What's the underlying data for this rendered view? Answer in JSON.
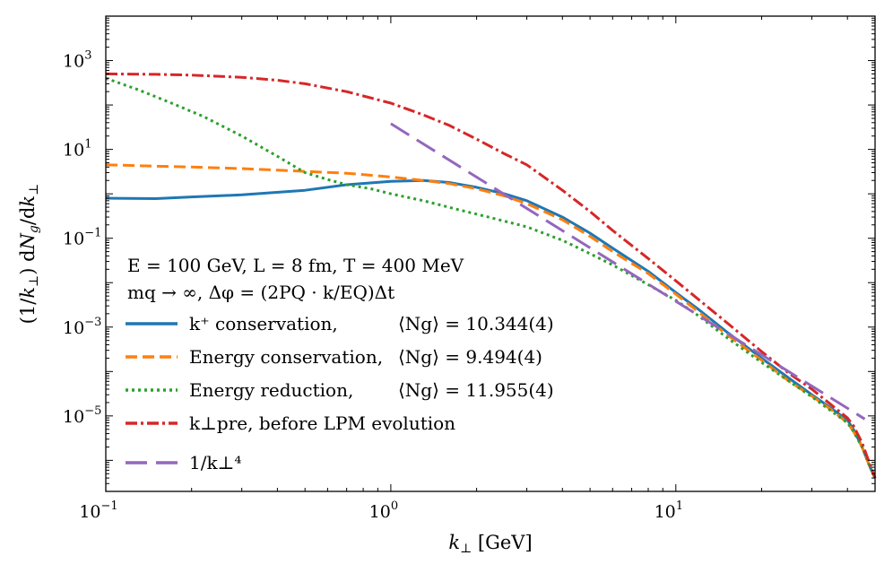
{
  "chart_data": {
    "type": "line",
    "xscale": "log",
    "yscale": "log",
    "xlim": [
      0.1,
      50
    ],
    "ylim": [
      2e-07,
      10000
    ],
    "xlabel": "(k⊥) [GeV]",
    "xlabel_text": "k⊥ [GeV]",
    "ylabel": "(1/k⊥) dNg/dk⊥",
    "x_ticks": [
      {
        "value": 0.1,
        "base": "10",
        "exp": "−1"
      },
      {
        "value": 1,
        "base": "10",
        "exp": "0"
      },
      {
        "value": 10,
        "base": "10",
        "exp": "1"
      }
    ],
    "y_ticks": [
      {
        "value": 1e-05,
        "base": "10",
        "exp": "−5"
      },
      {
        "value": 0.001,
        "base": "10",
        "exp": "−3"
      },
      {
        "value": 0.1,
        "base": "10",
        "exp": "−1"
      },
      {
        "value": 10,
        "base": "10",
        "exp": "1"
      },
      {
        "value": 1000,
        "base": "10",
        "exp": "3"
      }
    ],
    "annotations": [
      "E = 100 GeV,   L = 8 fm,   T = 400 MeV",
      "mq → ∞,   Δφ = (2PQ · k/EQ)Δt"
    ],
    "series": [
      {
        "name": "k⁺ conservation",
        "legend": "k⁺ conservation,",
        "avg": "⟨Ng⟩ = 10.344(4)",
        "color": "#1f77b4",
        "style": "solid",
        "x": [
          0.1,
          0.15,
          0.2,
          0.3,
          0.5,
          0.7,
          1.0,
          1.3,
          1.6,
          2.0,
          2.5,
          3.0,
          4.0,
          5.0,
          6.0,
          8.0,
          10,
          12,
          15,
          20,
          25,
          30,
          35,
          40,
          42,
          45,
          48,
          50
        ],
        "y": [
          0.8,
          0.78,
          0.85,
          0.95,
          1.2,
          1.6,
          1.9,
          2.0,
          1.8,
          1.4,
          1.0,
          0.7,
          0.3,
          0.13,
          0.06,
          0.018,
          0.006,
          0.0025,
          0.0008,
          0.0002,
          7e-05,
          3e-05,
          1.5e-05,
          8e-06,
          5e-06,
          2e-06,
          7e-07,
          4e-07
        ]
      },
      {
        "name": "Energy conservation",
        "legend": "Energy conservation,",
        "avg": "⟨Ng⟩ = 9.494(4)",
        "color": "#ff7f0e",
        "style": "dashed",
        "x": [
          0.1,
          0.15,
          0.2,
          0.3,
          0.5,
          0.7,
          1.0,
          1.3,
          1.6,
          2.0,
          2.5,
          3.0,
          4.0,
          5.0,
          6.0,
          8.0,
          10,
          12,
          15,
          20,
          25,
          30,
          35,
          40,
          42,
          45,
          48,
          50
        ],
        "y": [
          4.5,
          4.2,
          4.0,
          3.7,
          3.2,
          2.9,
          2.4,
          2.0,
          1.7,
          1.3,
          0.9,
          0.6,
          0.26,
          0.11,
          0.05,
          0.016,
          0.0055,
          0.0022,
          0.0007,
          0.00018,
          6e-05,
          2.8e-05,
          1.4e-05,
          7e-06,
          4.5e-06,
          2e-06,
          7e-07,
          4e-07
        ]
      },
      {
        "name": "Energy reduction",
        "legend": "Energy reduction,",
        "avg": "⟨Ng⟩ = 11.955(4)",
        "color": "#2ca02c",
        "style": "dotted",
        "x": [
          0.1,
          0.13,
          0.17,
          0.22,
          0.3,
          0.4,
          0.5,
          0.6,
          0.7,
          0.85,
          1.0,
          1.3,
          1.7,
          2.2,
          3.0,
          4.0,
          5.0,
          6.0,
          8.0,
          10,
          12,
          15,
          20,
          25,
          30,
          35,
          40,
          42,
          45,
          48,
          50
        ],
        "y": [
          400,
          220,
          110,
          55,
          20,
          7,
          3,
          2.1,
          1.6,
          1.3,
          1.0,
          0.7,
          0.45,
          0.3,
          0.18,
          0.09,
          0.045,
          0.025,
          0.009,
          0.004,
          0.0018,
          0.0006,
          0.00016,
          6e-05,
          2.7e-05,
          1.3e-05,
          7e-06,
          4.5e-06,
          2e-06,
          7e-07,
          4e-07
        ]
      },
      {
        "name": "k⊥pre, before LPM evolution",
        "legend": "k⊥pre, before LPM evolution",
        "avg": "",
        "color": "#d62728",
        "style": "dashdot",
        "x": [
          0.1,
          0.15,
          0.2,
          0.3,
          0.4,
          0.5,
          0.7,
          1.0,
          1.3,
          1.6,
          2.0,
          2.5,
          3.0,
          4.0,
          5.0,
          6.0,
          8.0,
          10,
          12,
          15,
          20,
          25,
          30,
          35,
          40,
          42,
          45,
          48,
          50
        ],
        "y": [
          500,
          490,
          470,
          420,
          360,
          300,
          200,
          110,
          60,
          35,
          17,
          8,
          4.5,
          1.2,
          0.4,
          0.15,
          0.035,
          0.011,
          0.0042,
          0.0013,
          0.00028,
          9e-05,
          4e-05,
          1.8e-05,
          9e-06,
          6e-06,
          2.5e-06,
          8e-07,
          4e-07
        ]
      },
      {
        "name": "1/k⊥⁴",
        "legend": "1/k⊥⁴",
        "avg": "",
        "color": "#9467bd",
        "style": "longdash",
        "x": [
          1.0,
          46
        ],
        "y": [
          38,
          8.5e-06
        ]
      }
    ]
  }
}
